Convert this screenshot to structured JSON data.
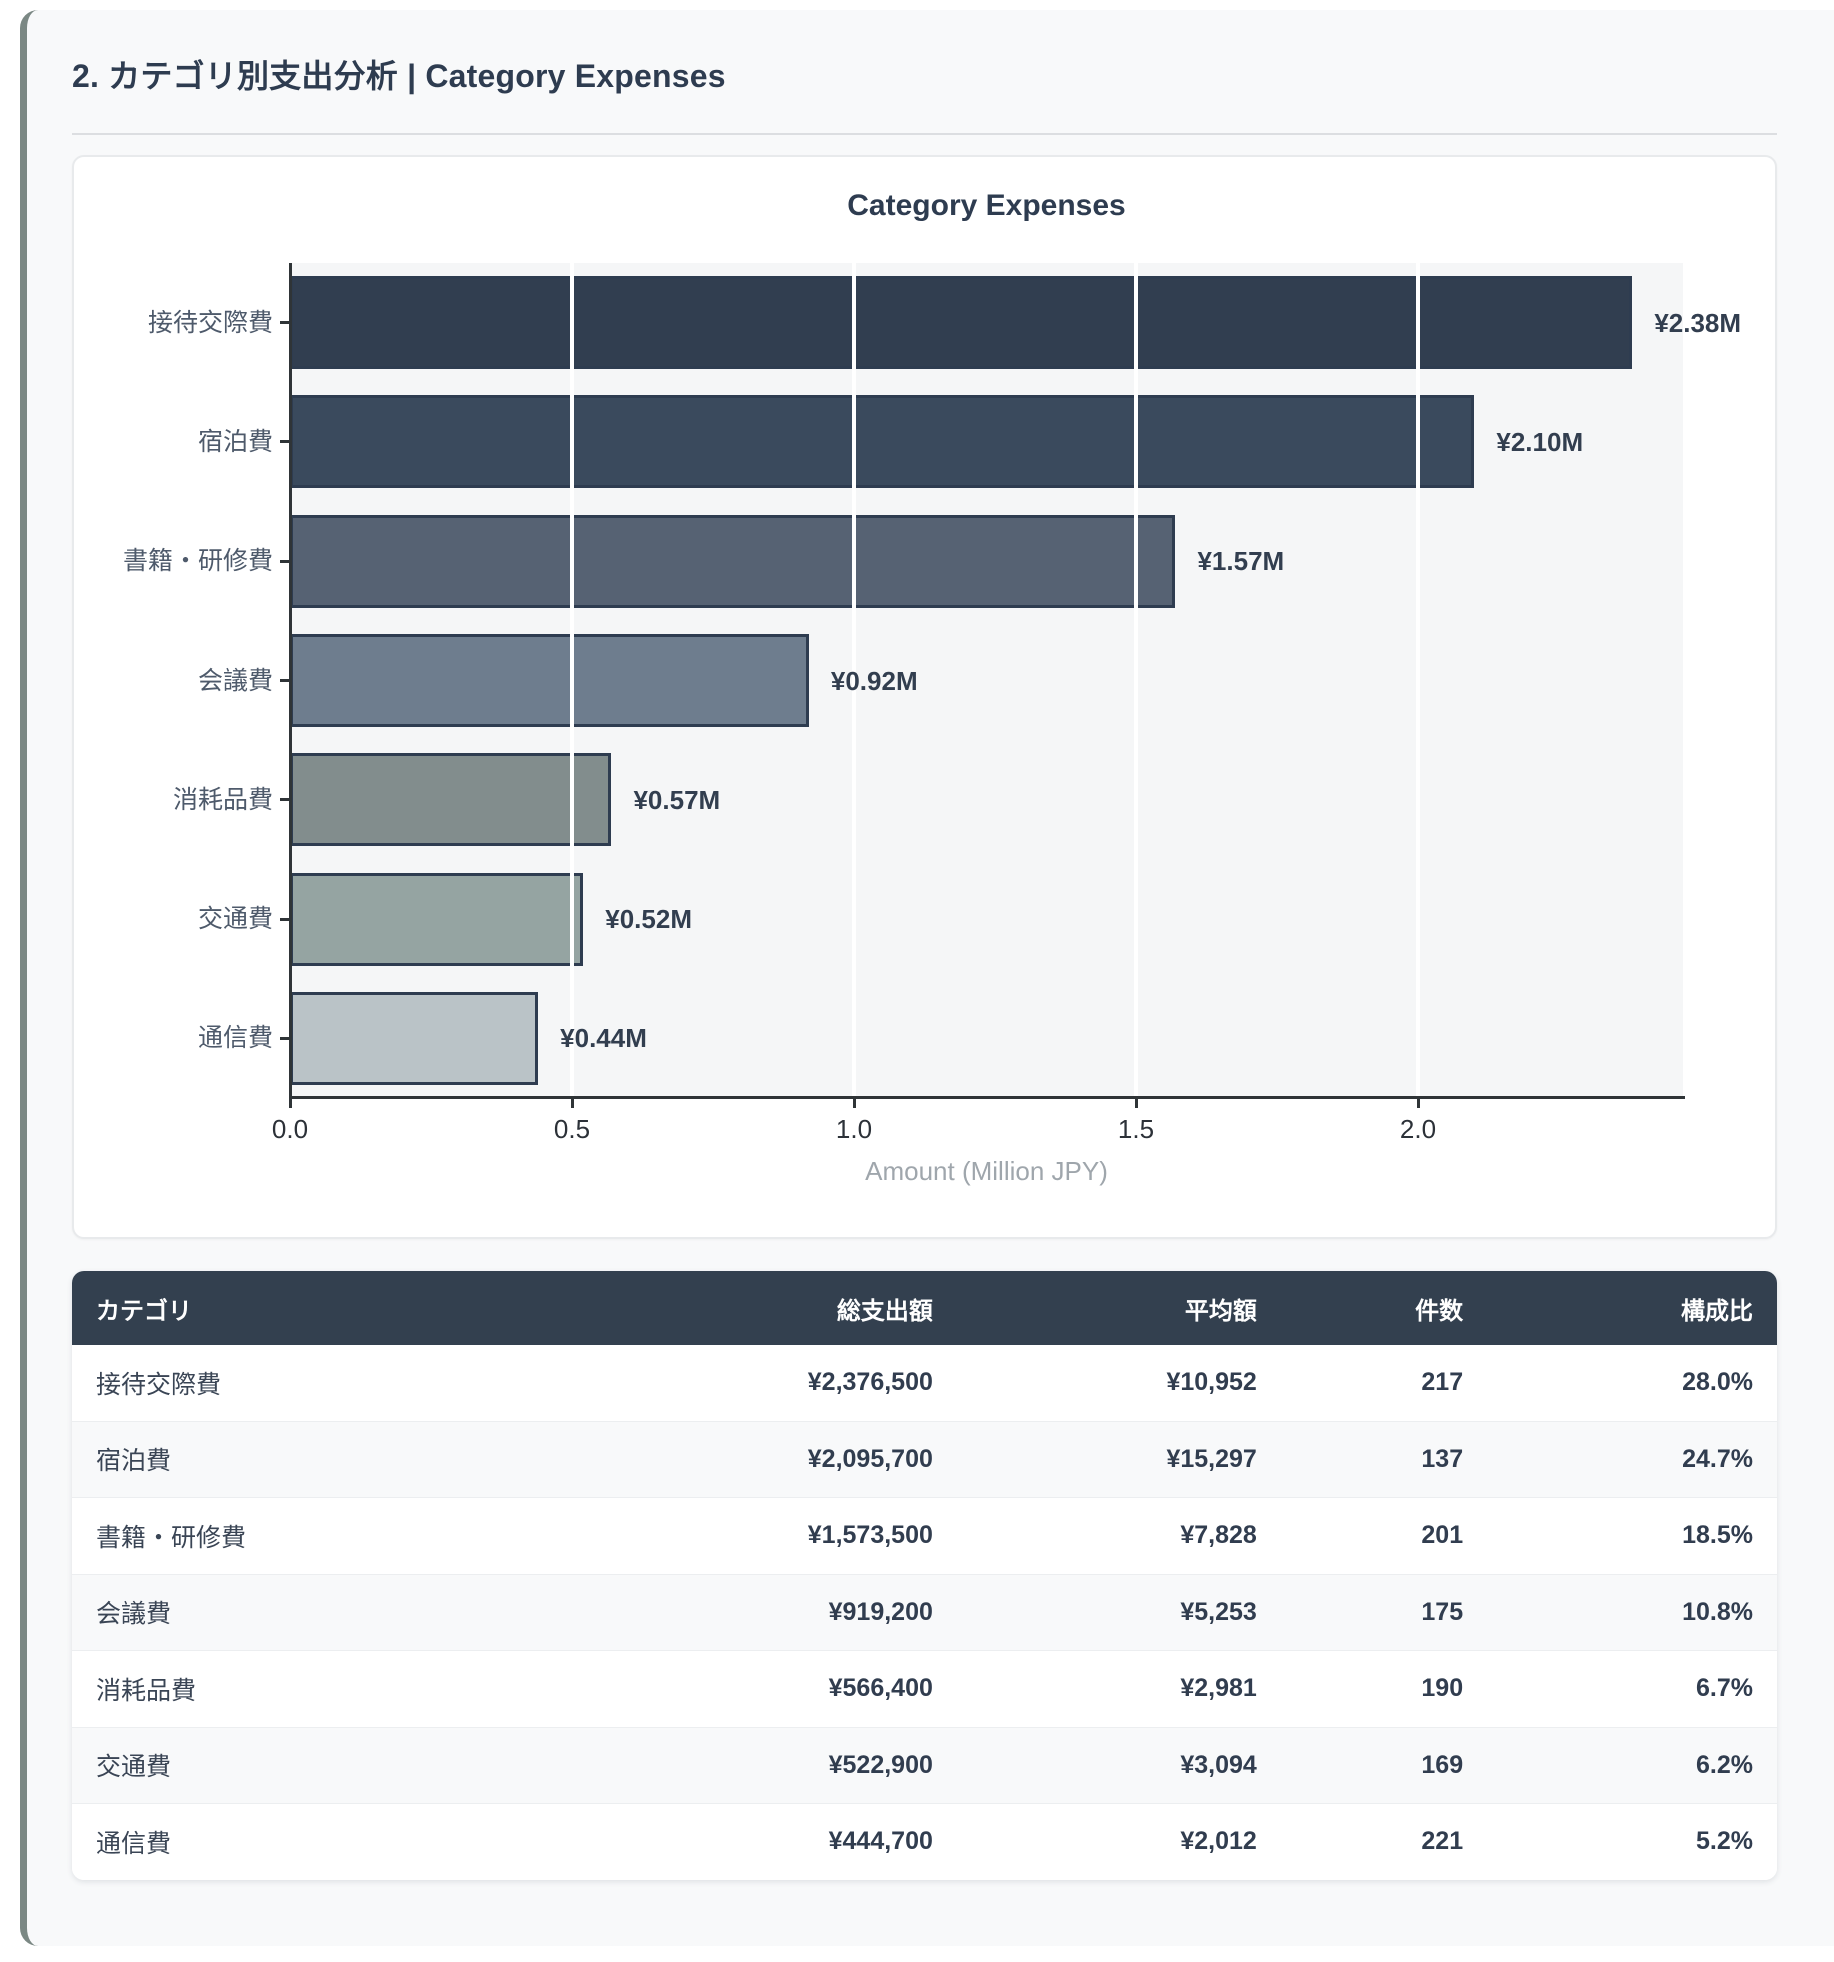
{
  "page": {
    "section_title": "2. カテゴリ別支出分析 | Category Expenses"
  },
  "chart_data": {
    "type": "bar",
    "orientation": "horizontal",
    "title": "Category Expenses",
    "xlabel": "Amount (Million JPY)",
    "categories": [
      "接待交際費",
      "宿泊費",
      "書籍・研修費",
      "会議費",
      "消耗品費",
      "交通費",
      "通信費"
    ],
    "values": [
      2.38,
      2.1,
      1.57,
      0.92,
      0.57,
      0.52,
      0.44
    ],
    "value_labels": [
      "¥2.38M",
      "¥2.10M",
      "¥1.57M",
      "¥0.92M",
      "¥0.57M",
      "¥0.52M",
      "¥0.44M"
    ],
    "x_ticks": [
      0.0,
      0.5,
      1.0,
      1.5,
      2.0
    ],
    "x_tick_labels": [
      "0.0",
      "0.5",
      "1.0",
      "1.5",
      "2.0"
    ],
    "xlim": [
      0,
      2.47
    ],
    "grid": true,
    "legend": false,
    "plot_bg": "#f5f6f7",
    "bar_colors": [
      "#313e50",
      "#3a4a5d",
      "#566273",
      "#6e7d8e",
      "#828d8d",
      "#95a4a2",
      "#bac3c7"
    ],
    "bar_border_color": "#2e3c50"
  },
  "table": {
    "headers": [
      "カテゴリ",
      "総支出額",
      "平均額",
      "件数",
      "構成比"
    ],
    "rows": [
      {
        "category": "接待交際費",
        "total": "¥2,376,500",
        "average": "¥10,952",
        "count": "217",
        "share": "28.0%"
      },
      {
        "category": "宿泊費",
        "total": "¥2,095,700",
        "average": "¥15,297",
        "count": "137",
        "share": "24.7%"
      },
      {
        "category": "書籍・研修費",
        "total": "¥1,573,500",
        "average": "¥7,828",
        "count": "201",
        "share": "18.5%"
      },
      {
        "category": "会議費",
        "total": "¥919,200",
        "average": "¥5,253",
        "count": "175",
        "share": "10.8%"
      },
      {
        "category": "消耗品費",
        "total": "¥566,400",
        "average": "¥2,981",
        "count": "190",
        "share": "6.7%"
      },
      {
        "category": "交通費",
        "total": "¥522,900",
        "average": "¥3,094",
        "count": "169",
        "share": "6.2%"
      },
      {
        "category": "通信費",
        "total": "¥444,700",
        "average": "¥2,012",
        "count": "221",
        "share": "5.2%"
      }
    ]
  },
  "colors": {
    "accent_navy": "#2e3c50",
    "table_header_bg": "#33404f",
    "card_bg": "#f8f9fa",
    "left_strip": "#7b8884",
    "zebra_row": "#f8f9fa"
  }
}
